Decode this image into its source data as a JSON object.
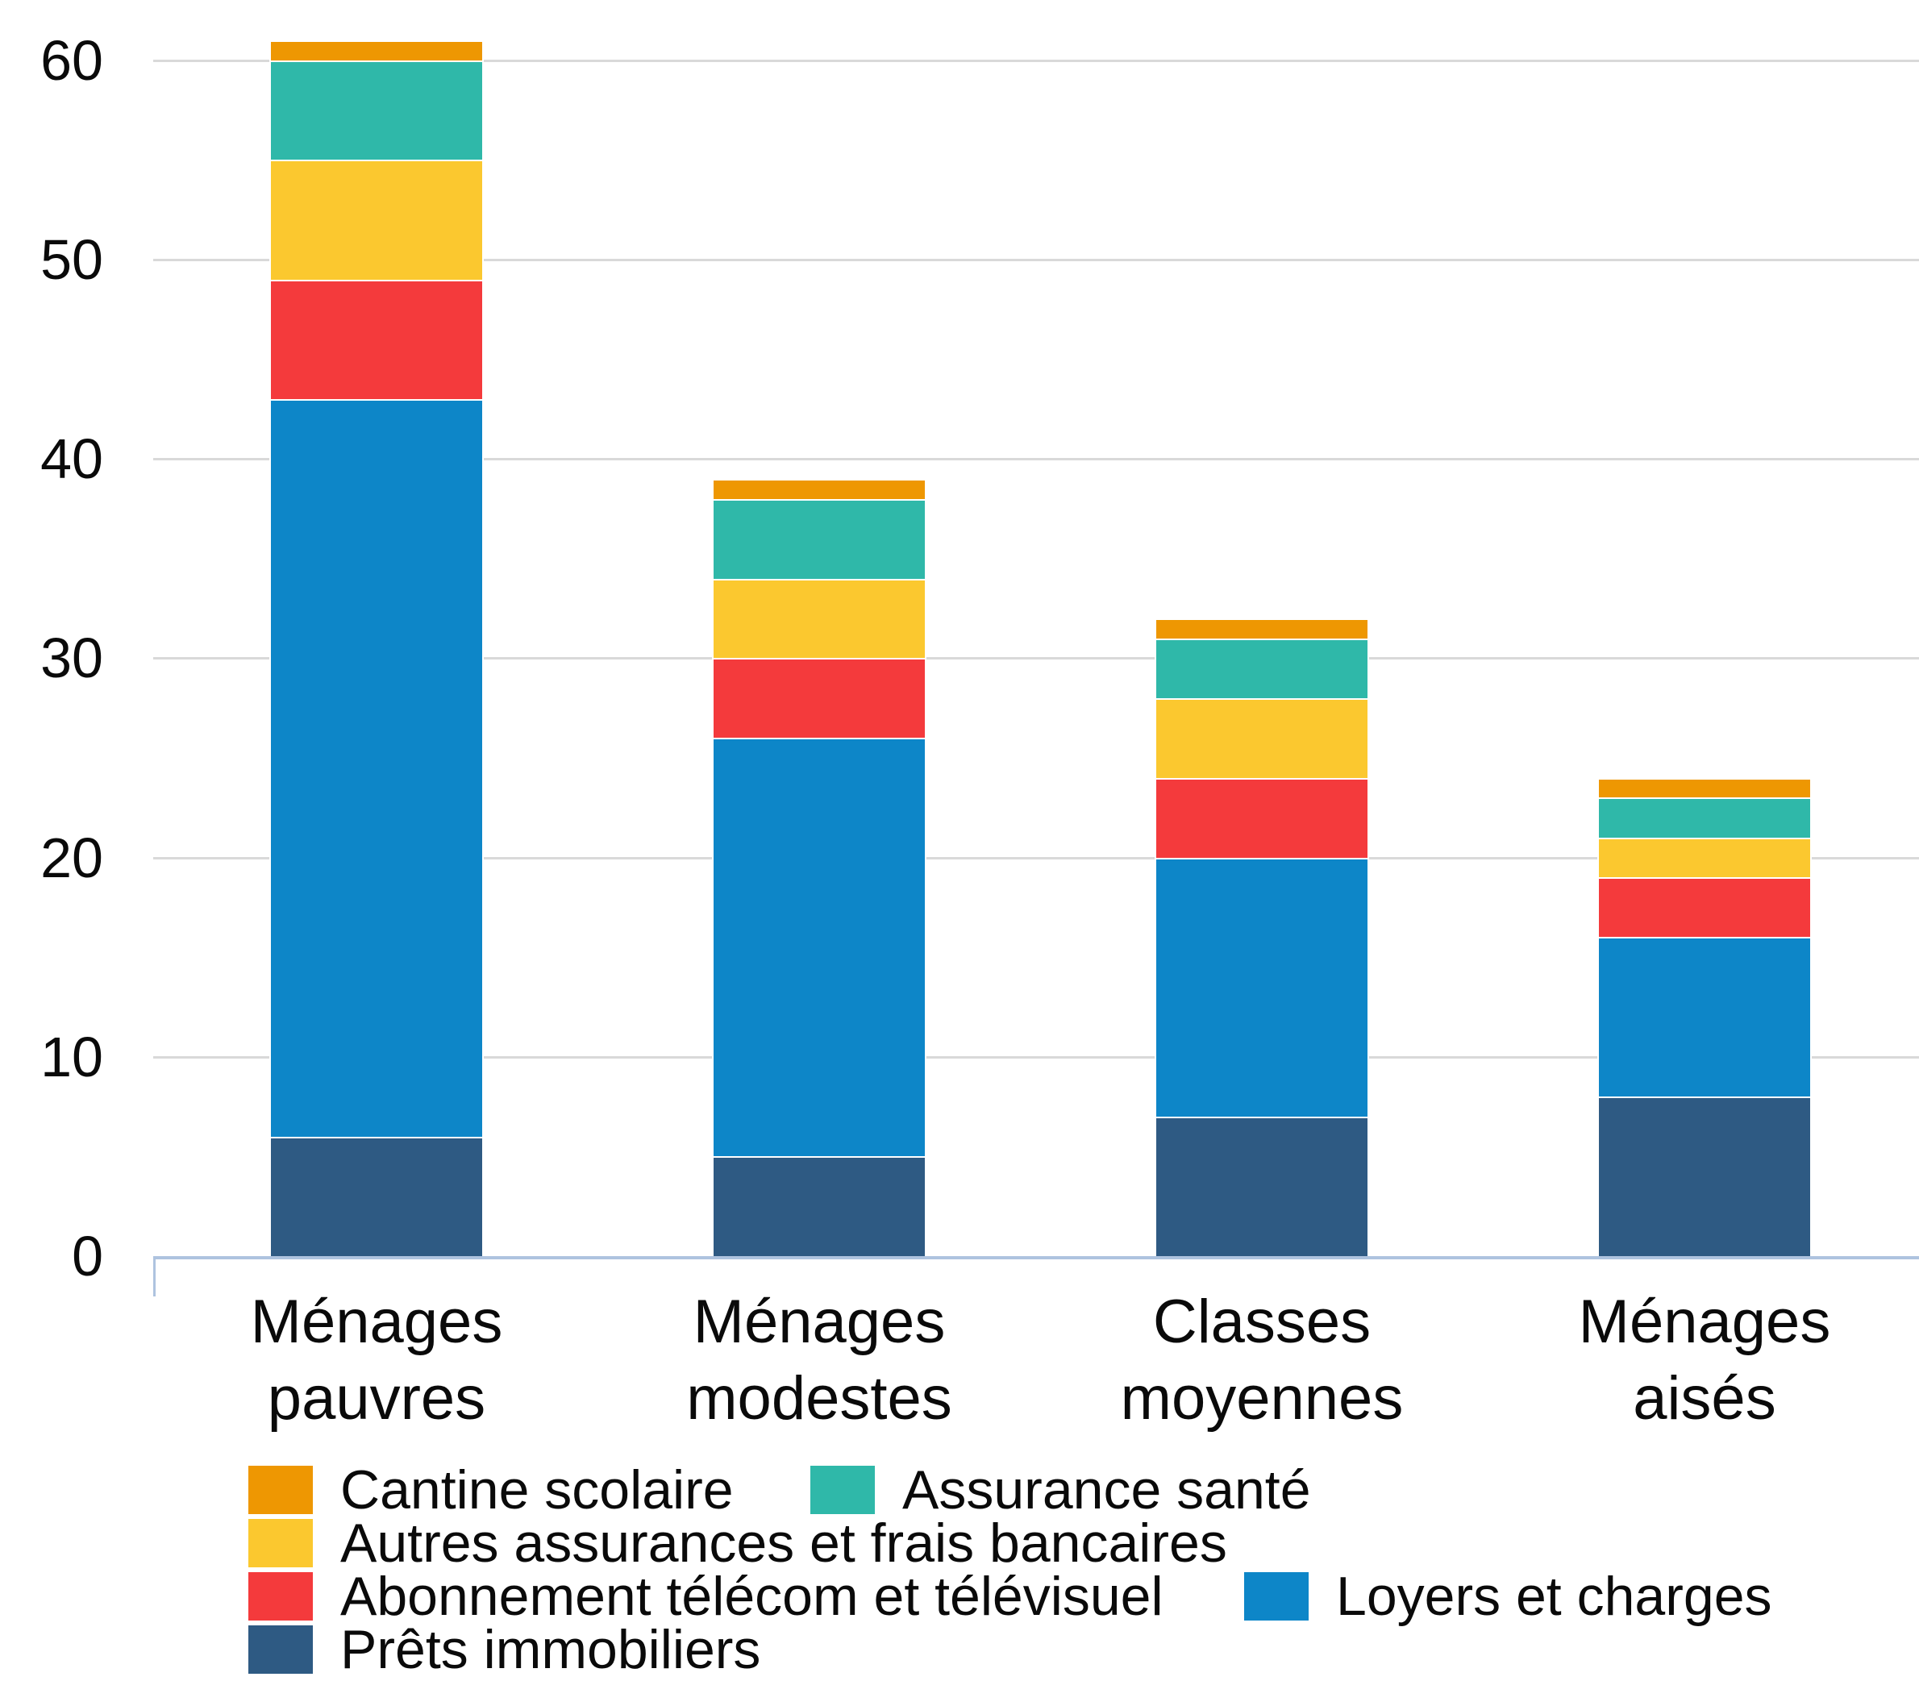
{
  "chart_data": {
    "type": "bar",
    "stacked": true,
    "title": "",
    "xlabel": "",
    "ylabel": "",
    "categories": [
      "Ménages pauvres",
      "Ménages modestes",
      "Classes moyennes",
      "Ménages aisés"
    ],
    "category_label_lines": [
      [
        "Ménages",
        "pauvres"
      ],
      [
        "Ménages",
        "modestes"
      ],
      [
        "Classes",
        "moyennes"
      ],
      [
        "Ménages",
        "aisés"
      ]
    ],
    "series": [
      {
        "name": "Prêts immobiliers",
        "color": "#2E5A83",
        "values": [
          6,
          5,
          7,
          8
        ]
      },
      {
        "name": "Loyers et charges",
        "color": "#0D86C8",
        "values": [
          37,
          21,
          13,
          8
        ]
      },
      {
        "name": "Abonnement télécom et télévisuel",
        "color": "#F43A3C",
        "values": [
          6,
          4,
          4,
          3
        ]
      },
      {
        "name": "Autres assurances et frais bancaires",
        "color": "#FBC82F",
        "values": [
          6,
          4,
          4,
          2
        ]
      },
      {
        "name": "Assurance santé",
        "color": "#2FB8A9",
        "values": [
          5,
          4,
          3,
          2
        ]
      },
      {
        "name": "Cantine scolaire",
        "color": "#EE9702",
        "values": [
          1,
          1,
          1,
          1
        ]
      }
    ],
    "stack_totals": [
      61,
      39,
      32,
      24
    ],
    "y_axis": {
      "ticks": [
        0,
        10,
        20,
        30,
        40,
        50,
        60
      ],
      "range": [
        0,
        62
      ],
      "gridlines": true
    },
    "legend": {
      "position": "bottom",
      "rows": [
        [
          {
            "label": "Cantine scolaire",
            "color": "#EE9702"
          },
          {
            "label": "Assurance santé",
            "color": "#2FB8A9"
          }
        ],
        [
          {
            "label": "Autres assurances et frais bancaires",
            "color": "#FBC82F"
          }
        ],
        [
          {
            "label": "Abonnement télécom et télévisuel",
            "color": "#F43A3C"
          },
          {
            "label": "Loyers et charges",
            "color": "#0D86C8"
          }
        ],
        [
          {
            "label": "Prêts immobiliers",
            "color": "#2E5A83"
          }
        ]
      ]
    },
    "colors": {
      "gridline": "#D9D9D9",
      "axis_line": "#AEC3DF",
      "text": "#0A0A0A",
      "background": "#FFFFFF"
    }
  }
}
